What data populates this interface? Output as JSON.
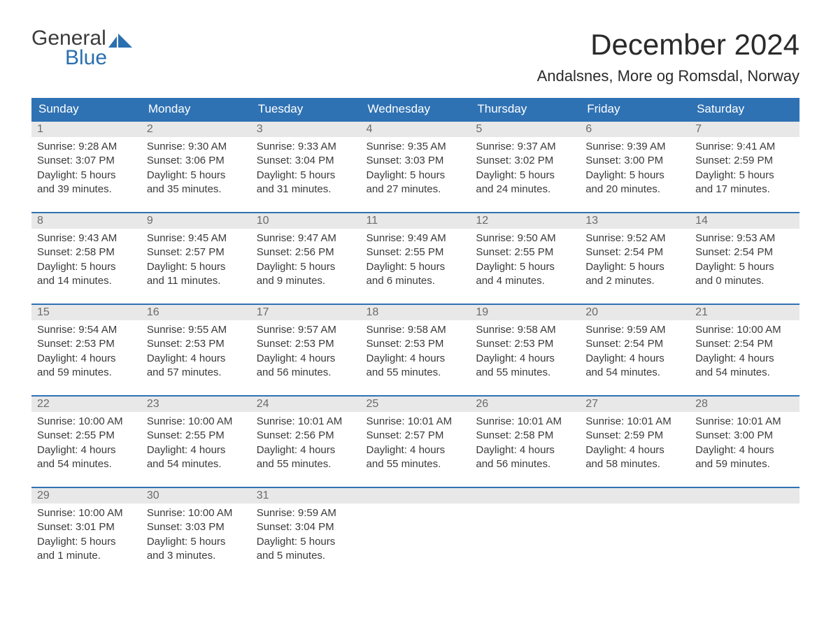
{
  "brand": {
    "word1": "General",
    "word2": "Blue"
  },
  "title": "December 2024",
  "location": "Andalsnes, More og Romsdal, Norway",
  "colors": {
    "header_bg": "#2f72b4",
    "header_fg": "#ffffff",
    "row_border": "#2f72b4",
    "daynum_bg": "#e8e8e8",
    "daynum_fg": "#6b6b6b",
    "body_fg": "#3a3a3a",
    "logo_accent": "#2a6fb0"
  },
  "columns": [
    "Sunday",
    "Monday",
    "Tuesday",
    "Wednesday",
    "Thursday",
    "Friday",
    "Saturday"
  ],
  "weeks": [
    [
      {
        "n": "1",
        "sr": "9:28 AM",
        "ss": "3:07 PM",
        "dl": "5 hours and 39 minutes."
      },
      {
        "n": "2",
        "sr": "9:30 AM",
        "ss": "3:06 PM",
        "dl": "5 hours and 35 minutes."
      },
      {
        "n": "3",
        "sr": "9:33 AM",
        "ss": "3:04 PM",
        "dl": "5 hours and 31 minutes."
      },
      {
        "n": "4",
        "sr": "9:35 AM",
        "ss": "3:03 PM",
        "dl": "5 hours and 27 minutes."
      },
      {
        "n": "5",
        "sr": "9:37 AM",
        "ss": "3:02 PM",
        "dl": "5 hours and 24 minutes."
      },
      {
        "n": "6",
        "sr": "9:39 AM",
        "ss": "3:00 PM",
        "dl": "5 hours and 20 minutes."
      },
      {
        "n": "7",
        "sr": "9:41 AM",
        "ss": "2:59 PM",
        "dl": "5 hours and 17 minutes."
      }
    ],
    [
      {
        "n": "8",
        "sr": "9:43 AM",
        "ss": "2:58 PM",
        "dl": "5 hours and 14 minutes."
      },
      {
        "n": "9",
        "sr": "9:45 AM",
        "ss": "2:57 PM",
        "dl": "5 hours and 11 minutes."
      },
      {
        "n": "10",
        "sr": "9:47 AM",
        "ss": "2:56 PM",
        "dl": "5 hours and 9 minutes."
      },
      {
        "n": "11",
        "sr": "9:49 AM",
        "ss": "2:55 PM",
        "dl": "5 hours and 6 minutes."
      },
      {
        "n": "12",
        "sr": "9:50 AM",
        "ss": "2:55 PM",
        "dl": "5 hours and 4 minutes."
      },
      {
        "n": "13",
        "sr": "9:52 AM",
        "ss": "2:54 PM",
        "dl": "5 hours and 2 minutes."
      },
      {
        "n": "14",
        "sr": "9:53 AM",
        "ss": "2:54 PM",
        "dl": "5 hours and 0 minutes."
      }
    ],
    [
      {
        "n": "15",
        "sr": "9:54 AM",
        "ss": "2:53 PM",
        "dl": "4 hours and 59 minutes."
      },
      {
        "n": "16",
        "sr": "9:55 AM",
        "ss": "2:53 PM",
        "dl": "4 hours and 57 minutes."
      },
      {
        "n": "17",
        "sr": "9:57 AM",
        "ss": "2:53 PM",
        "dl": "4 hours and 56 minutes."
      },
      {
        "n": "18",
        "sr": "9:58 AM",
        "ss": "2:53 PM",
        "dl": "4 hours and 55 minutes."
      },
      {
        "n": "19",
        "sr": "9:58 AM",
        "ss": "2:53 PM",
        "dl": "4 hours and 55 minutes."
      },
      {
        "n": "20",
        "sr": "9:59 AM",
        "ss": "2:54 PM",
        "dl": "4 hours and 54 minutes."
      },
      {
        "n": "21",
        "sr": "10:00 AM",
        "ss": "2:54 PM",
        "dl": "4 hours and 54 minutes."
      }
    ],
    [
      {
        "n": "22",
        "sr": "10:00 AM",
        "ss": "2:55 PM",
        "dl": "4 hours and 54 minutes."
      },
      {
        "n": "23",
        "sr": "10:00 AM",
        "ss": "2:55 PM",
        "dl": "4 hours and 54 minutes."
      },
      {
        "n": "24",
        "sr": "10:01 AM",
        "ss": "2:56 PM",
        "dl": "4 hours and 55 minutes."
      },
      {
        "n": "25",
        "sr": "10:01 AM",
        "ss": "2:57 PM",
        "dl": "4 hours and 55 minutes."
      },
      {
        "n": "26",
        "sr": "10:01 AM",
        "ss": "2:58 PM",
        "dl": "4 hours and 56 minutes."
      },
      {
        "n": "27",
        "sr": "10:01 AM",
        "ss": "2:59 PM",
        "dl": "4 hours and 58 minutes."
      },
      {
        "n": "28",
        "sr": "10:01 AM",
        "ss": "3:00 PM",
        "dl": "4 hours and 59 minutes."
      }
    ],
    [
      {
        "n": "29",
        "sr": "10:00 AM",
        "ss": "3:01 PM",
        "dl": "5 hours and 1 minute."
      },
      {
        "n": "30",
        "sr": "10:00 AM",
        "ss": "3:03 PM",
        "dl": "5 hours and 3 minutes."
      },
      {
        "n": "31",
        "sr": "9:59 AM",
        "ss": "3:04 PM",
        "dl": "5 hours and 5 minutes."
      },
      null,
      null,
      null,
      null
    ]
  ],
  "labels": {
    "sunrise": "Sunrise:",
    "sunset": "Sunset:",
    "daylight": "Daylight:"
  }
}
